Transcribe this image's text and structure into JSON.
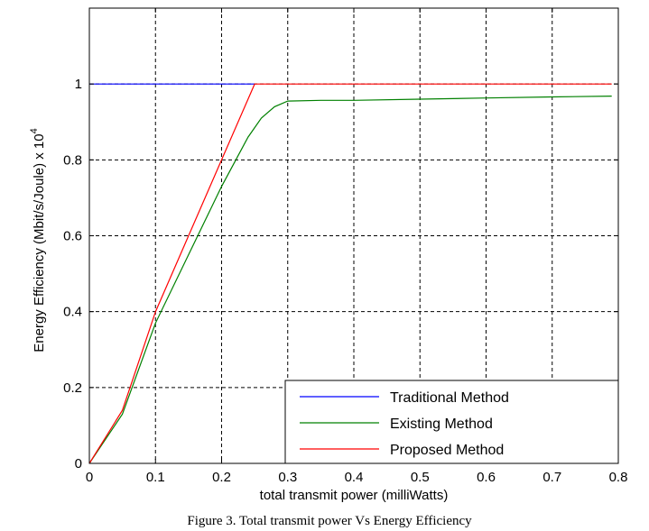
{
  "caption": "Figure 3. Total transmit power Vs  Energy Efficiency",
  "chart_data": {
    "type": "line",
    "title": "",
    "xlabel": "total transmit power (milliWatts)",
    "ylabel": "Energy Efficiency  (Mbit/s/Joule) x 10",
    "ylabel_exponent": "4",
    "xlim": [
      0,
      0.8
    ],
    "ylim": [
      0,
      1.2
    ],
    "x_ticks": [
      0,
      0.1,
      0.2,
      0.3,
      0.4,
      0.5,
      0.6,
      0.7,
      0.8
    ],
    "x_tick_labels": [
      "0",
      "0.1",
      "0.2",
      "0.3",
      "0.4",
      "0.5",
      "0.6",
      "0.7",
      "0.8"
    ],
    "y_ticks": [
      0,
      0.2,
      0.4,
      0.6,
      0.8,
      1
    ],
    "y_tick_labels": [
      "0",
      "0.2",
      "0.4",
      "0.6",
      "0.8",
      "1"
    ],
    "grid": true,
    "legend_position": "bottom-right",
    "series": [
      {
        "name": "Traditional Method",
        "color": "#0000ff",
        "points": [
          [
            0,
            1
          ],
          [
            0.25,
            1
          ]
        ]
      },
      {
        "name": "Existing Method",
        "color": "#008000",
        "points": [
          [
            0,
            0
          ],
          [
            0.05,
            0.13
          ],
          [
            0.1,
            0.37
          ],
          [
            0.15,
            0.55
          ],
          [
            0.2,
            0.73
          ],
          [
            0.24,
            0.86
          ],
          [
            0.26,
            0.91
          ],
          [
            0.28,
            0.94
          ],
          [
            0.3,
            0.955
          ],
          [
            0.35,
            0.957
          ],
          [
            0.4,
            0.957
          ],
          [
            0.5,
            0.96
          ],
          [
            0.6,
            0.963
          ],
          [
            0.7,
            0.966
          ],
          [
            0.79,
            0.968
          ]
        ]
      },
      {
        "name": "Proposed Method",
        "color": "#ff0000",
        "points": [
          [
            0,
            0
          ],
          [
            0.05,
            0.14
          ],
          [
            0.1,
            0.4
          ],
          [
            0.15,
            0.6
          ],
          [
            0.2,
            0.8
          ],
          [
            0.25,
            1
          ],
          [
            0.79,
            1
          ]
        ]
      }
    ]
  }
}
